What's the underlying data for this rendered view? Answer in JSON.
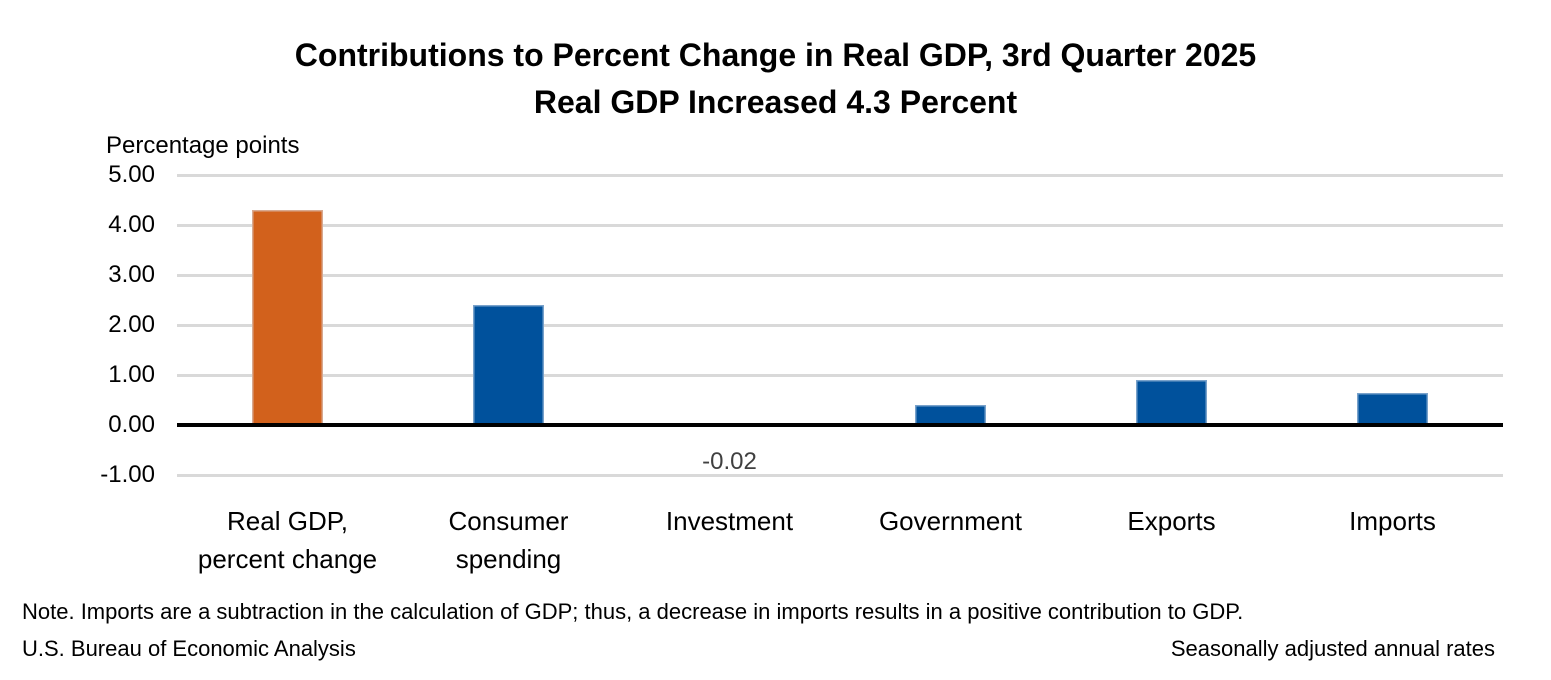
{
  "title": {
    "line1": "Contributions to Percent Change in Real GDP, 3rd Quarter 2025",
    "line2": "Real GDP Increased 4.3 Percent"
  },
  "axis": {
    "unit_label": "Percentage points",
    "ticks": [
      5,
      4,
      3,
      2,
      1,
      0,
      -1
    ],
    "tick_decimals": 2
  },
  "chart_data": {
    "type": "bar",
    "title": "Contributions to Percent Change in Real GDP, 3rd Quarter 2025",
    "subtitle": "Real GDP Increased 4.3 Percent",
    "ylabel": "Percentage points",
    "ylim": [
      -1,
      5
    ],
    "grid": true,
    "legend": "none",
    "categories": [
      "Real GDP,\npercent change",
      "Consumer\nspending",
      "Investment",
      "Government",
      "Exports",
      "Imports"
    ],
    "values": [
      4.3,
      2.4,
      -0.02,
      0.4,
      0.9,
      0.65
    ],
    "bar_colors": [
      "#D2611C",
      "#00519C",
      "#00519C",
      "#00519C",
      "#00519C",
      "#00519C"
    ],
    "value_labels": [
      null,
      null,
      "-0.02",
      null,
      null,
      null
    ]
  },
  "colors": {
    "highlight_bar": "#D2611C",
    "bar": "#00519C",
    "gridline": "#D9D9D9",
    "zero_line": "#000000",
    "value_label_text": "#404040"
  },
  "footnotes": {
    "note": "Note. Imports are a subtraction in the calculation of GDP; thus, a decrease in imports results in a positive contribution to GDP.",
    "source": "U.S. Bureau of Economic Analysis",
    "right": "Seasonally adjusted annual rates"
  }
}
